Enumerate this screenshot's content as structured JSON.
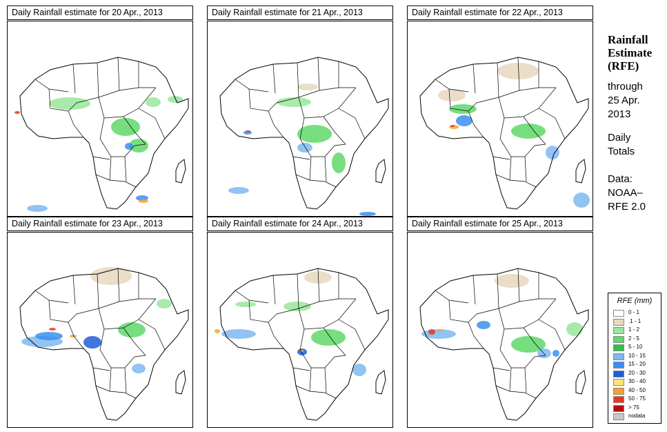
{
  "panels": [
    {
      "title": "Daily Rainfall estimate for  20 Apr., 2013"
    },
    {
      "title": "Daily Rainfall estimate for  21 Apr., 2013"
    },
    {
      "title": "Daily Rainfall estimate for  22 Apr., 2013"
    },
    {
      "title": "Daily Rainfall estimate for  23 Apr., 2013"
    },
    {
      "title": "Daily Rainfall estimate for  24 Apr., 2013"
    },
    {
      "title": "Daily Rainfall estimate for  25 Apr., 2013"
    }
  ],
  "sidebar": {
    "title_line1": "Rainfall",
    "title_line2": "Estimate",
    "title_line3": "(RFE)",
    "through_line1": "through",
    "through_line2": "25 Apr.",
    "through_line3": "2013",
    "totals_line1": "Daily",
    "totals_line2": "Totals",
    "data_line1": "Data:",
    "data_line2": "NOAA–",
    "data_line3": "RFE 2.0"
  },
  "legend": {
    "title": "RFE (mm)",
    "items": [
      {
        "label": "0 - 1",
        "color": "#ffffff"
      },
      {
        "label": ".1 - 1",
        "color": "#e6d8bf"
      },
      {
        "label": "1 - 2",
        "color": "#98e69a"
      },
      {
        "label": "2 - 5",
        "color": "#5fd86a"
      },
      {
        "label": "5 - 10",
        "color": "#2ec14a"
      },
      {
        "label": "10 - 15",
        "color": "#7fb8f0"
      },
      {
        "label": "15 - 20",
        "color": "#3a8ff0"
      },
      {
        "label": "20 - 30",
        "color": "#1f5ed8"
      },
      {
        "label": "30 - 40",
        "color": "#ffe27a"
      },
      {
        "label": "40 - 50",
        "color": "#f9a02a"
      },
      {
        "label": "50 - 75",
        "color": "#e83a1a"
      },
      {
        "label": "> 75",
        "color": "#b40f0f"
      },
      {
        "label": "nodata",
        "color": "#c8c8c8"
      }
    ]
  }
}
